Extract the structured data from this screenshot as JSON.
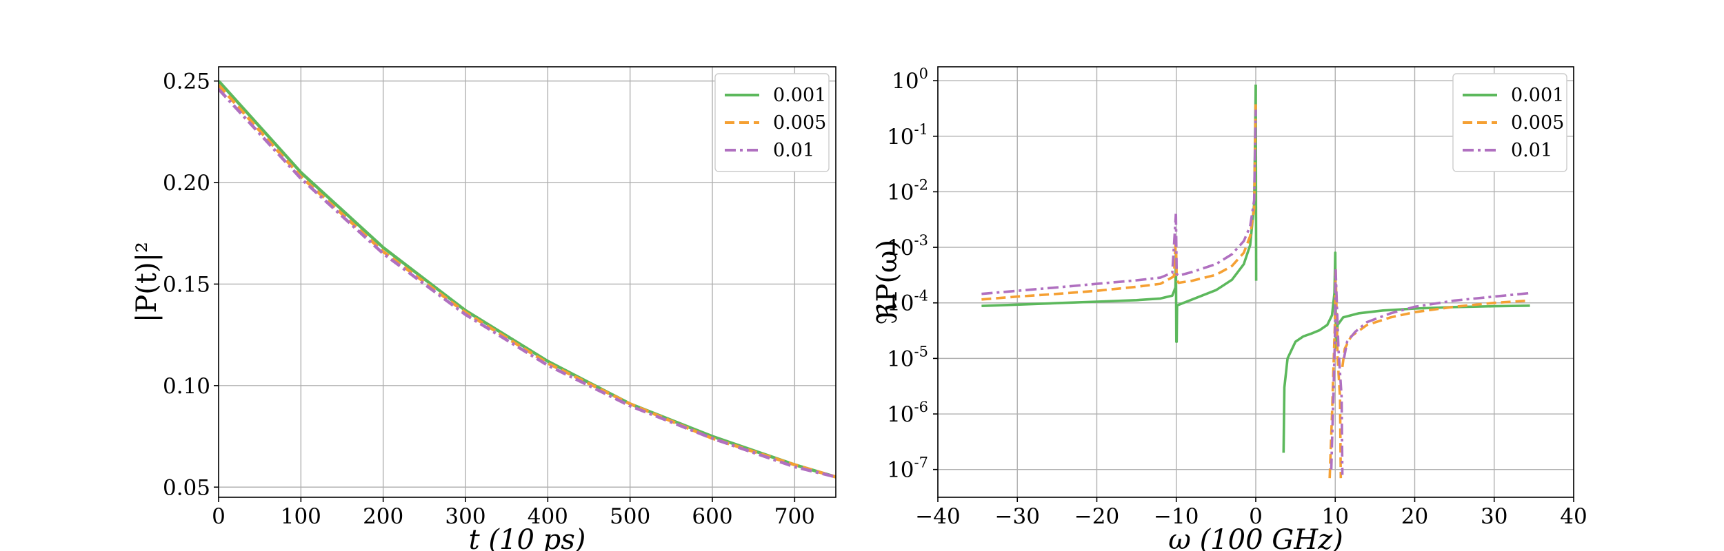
{
  "chart_data": [
    {
      "type": "line",
      "xlabel": "t (10 ps)",
      "ylabel": "|P(t)|²",
      "xlim": [
        0,
        750
      ],
      "ylim": [
        0.045,
        0.257
      ],
      "y_scale": "linear",
      "grid": true,
      "legend_position": "top-right",
      "x_ticks": [
        "0",
        "100",
        "200",
        "300",
        "400",
        "500",
        "600",
        "700"
      ],
      "y_ticks": [
        "0.05",
        "0.10",
        "0.15",
        "0.20",
        "0.25"
      ],
      "series": [
        {
          "name": "0.001",
          "color": "#5cb85c",
          "dash": "solid",
          "x": [
            0,
            100,
            200,
            300,
            400,
            500,
            600,
            700,
            750
          ],
          "y": [
            0.25,
            0.205,
            0.168,
            0.137,
            0.112,
            0.091,
            0.075,
            0.061,
            0.055
          ]
        },
        {
          "name": "0.005",
          "color": "#f5a033",
          "dash": "dashed",
          "x": [
            0,
            100,
            200,
            300,
            400,
            500,
            600,
            700,
            750
          ],
          "y": [
            0.248,
            0.203,
            0.166,
            0.136,
            0.111,
            0.091,
            0.074,
            0.061,
            0.055
          ]
        },
        {
          "name": "0.01",
          "color": "#b070c0",
          "dash": "dashdot",
          "x": [
            0,
            100,
            200,
            300,
            400,
            500,
            600,
            700,
            750
          ],
          "y": [
            0.246,
            0.202,
            0.165,
            0.135,
            0.11,
            0.09,
            0.074,
            0.06,
            0.055
          ]
        }
      ]
    },
    {
      "type": "line",
      "xlabel": "ω (100 GHz)",
      "ylabel": "ℜP(ω)",
      "xlim": [
        -40,
        40
      ],
      "ylim_log10": [
        -7.5,
        0.25
      ],
      "y_scale": "log",
      "grid": true,
      "legend_position": "top-right",
      "x_ticks": [
        "−40",
        "−30",
        "−20",
        "−10",
        "0",
        "10",
        "20",
        "30",
        "40"
      ],
      "y_ticks": [
        {
          "mantissa": "10",
          "exp": "0"
        },
        {
          "mantissa": "10",
          "exp": "-1"
        },
        {
          "mantissa": "10",
          "exp": "-2"
        },
        {
          "mantissa": "10",
          "exp": "-3"
        },
        {
          "mantissa": "10",
          "exp": "-4"
        },
        {
          "mantissa": "10",
          "exp": "-5"
        },
        {
          "mantissa": "10",
          "exp": "-6"
        },
        {
          "mantissa": "10",
          "exp": "-7"
        }
      ],
      "series": [
        {
          "name": "0.001",
          "color": "#5cb85c",
          "dash": "solid",
          "segments": [
            {
              "x": [
                -34.5,
                -30,
                -25,
                -20,
                -15,
                -12,
                -10.5,
                -10.1
              ],
              "y": [
                8.8e-05,
                9.3e-05,
                9.9e-05,
                0.000105,
                0.000112,
                0.00012,
                0.000135,
                0.00019
              ]
            },
            {
              "x": [
                -10.1,
                -10.05,
                -10.0,
                -9.95,
                -9.9
              ],
              "y": [
                0.00019,
                0.0008,
                2e-05,
                2e-05,
                9e-05
              ]
            },
            {
              "x": [
                -9.9,
                -8,
                -5,
                -3,
                -1.5,
                -0.7,
                -0.2,
                0.0
              ],
              "y": [
                9e-05,
                0.000115,
                0.00017,
                0.00026,
                0.0005,
                0.0011,
                0.006,
                0.85
              ]
            },
            {
              "x": [
                0.0,
                0.05
              ],
              "y": [
                0.85,
                0.00025
              ]
            },
            {
              "x": [
                3.5,
                3.6,
                4,
                5,
                6,
                7,
                8,
                9,
                9.6,
                9.9
              ],
              "y": [
                2e-07,
                3e-06,
                1e-05,
                2e-05,
                2.5e-05,
                2.8e-05,
                3.2e-05,
                4e-05,
                6e-05,
                0.00015
              ]
            },
            {
              "x": [
                9.9,
                10.0,
                10.05,
                10.1
              ],
              "y": [
                0.00015,
                0.0008,
                0.0001,
                1.5e-05
              ]
            },
            {
              "x": [
                10.1,
                10.3,
                11,
                13,
                16,
                20,
                25,
                30,
                34.5
              ],
              "y": [
                1.5e-05,
                4e-05,
                5.5e-05,
                6.5e-05,
                7.3e-05,
                7.9e-05,
                8.4e-05,
                8.7e-05,
                8.9e-05
              ]
            }
          ]
        },
        {
          "name": "0.005",
          "color": "#f5a033",
          "dash": "dashed",
          "segments": [
            {
              "x": [
                -34.5,
                -30,
                -25,
                -20,
                -15,
                -12,
                -10.3,
                -10.05
              ],
              "y": [
                0.000115,
                0.00013,
                0.000145,
                0.000165,
                0.000195,
                0.00022,
                0.0003,
                0.0015
              ]
            },
            {
              "x": [
                -10.05,
                -9.95,
                -9.7,
                -8,
                -5,
                -3,
                -1.5,
                -0.7,
                -0.2,
                0.0
              ],
              "y": [
                0.0015,
                0.00026,
                0.00023,
                0.00025,
                0.00032,
                0.00046,
                0.0008,
                0.0016,
                0.005,
                0.45
              ]
            },
            {
              "x": [
                9.3,
                9.6,
                9.8,
                9.95,
                10.05
              ],
              "y": [
                7e-08,
                1e-06,
                8e-06,
                4e-05,
                0.0004
              ]
            },
            {
              "x": [
                10.05,
                10.3,
                10.6,
                10.7
              ],
              "y": [
                0.0004,
                1e-05,
                2e-06,
                7e-08
              ]
            },
            {
              "x": [
                10.9,
                11.2,
                12,
                14,
                17,
                20,
                25,
                30,
                34.5
              ],
              "y": [
                7e-06,
                1.5e-05,
                2.5e-05,
                4e-05,
                5.5e-05,
                6.8e-05,
                8.5e-05,
                0.0001,
                0.00011
              ]
            }
          ]
        },
        {
          "name": "0.01",
          "color": "#b070c0",
          "dash": "dashdot",
          "segments": [
            {
              "x": [
                -34.5,
                -30,
                -25,
                -20,
                -15,
                -12,
                -10.5,
                -10.05
              ],
              "y": [
                0.000145,
                0.000165,
                0.00019,
                0.00022,
                0.000255,
                0.000285,
                0.00035,
                0.004
              ]
            },
            {
              "x": [
                -10.05,
                -9.95,
                -9.7,
                -8,
                -5,
                -3,
                -1.5,
                -0.7,
                -0.2,
                0.0
              ],
              "y": [
                0.004,
                0.00033,
                0.00031,
                0.00036,
                0.0005,
                0.00075,
                0.0013,
                0.0024,
                0.007,
                0.3
              ]
            },
            {
              "x": [
                9.5,
                9.8,
                9.95,
                10.05
              ],
              "y": [
                1e-07,
                3e-06,
                2e-05,
                0.0004
              ]
            },
            {
              "x": [
                10.05,
                10.4,
                10.8,
                10.9
              ],
              "y": [
                0.0004,
                1.5e-05,
                2e-06,
                8e-08
              ]
            },
            {
              "x": [
                11.1,
                11.5,
                12.5,
                14,
                17,
                20,
                25,
                30,
                34.5
              ],
              "y": [
                1e-05,
                2e-05,
                3e-05,
                4.5e-05,
                6.5e-05,
                8.5e-05,
                0.00011,
                0.00013,
                0.00015
              ]
            }
          ]
        }
      ]
    }
  ]
}
